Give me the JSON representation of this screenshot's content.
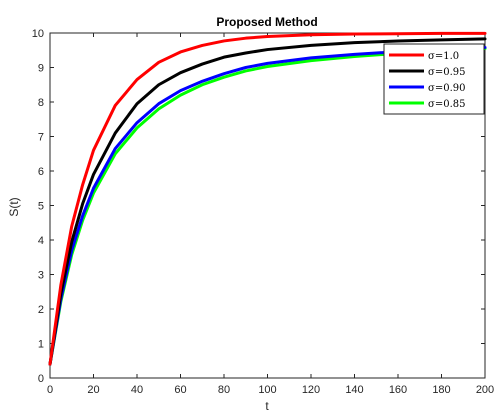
{
  "chart_data": {
    "type": "line",
    "title": "Proposed Method",
    "xlabel": "t",
    "ylabel": "S(t)",
    "xlim": [
      0,
      200
    ],
    "ylim": [
      0,
      10
    ],
    "xticks": [
      0,
      20,
      40,
      60,
      80,
      100,
      120,
      140,
      160,
      180,
      200
    ],
    "yticks": [
      0,
      1,
      2,
      3,
      4,
      5,
      6,
      7,
      8,
      9,
      10
    ],
    "grid": false,
    "legend_position": "top-right",
    "x": [
      0,
      5,
      10,
      15,
      20,
      30,
      40,
      50,
      60,
      70,
      80,
      90,
      100,
      120,
      140,
      160,
      180,
      200
    ],
    "series": [
      {
        "name": "σ=1.0",
        "color": "#ff0000",
        "values": [
          0.4,
          2.7,
          4.4,
          5.6,
          6.6,
          7.9,
          8.65,
          9.15,
          9.45,
          9.64,
          9.77,
          9.85,
          9.9,
          9.95,
          9.97,
          9.98,
          9.99,
          9.99
        ]
      },
      {
        "name": "σ=0.95",
        "color": "#000000",
        "values": [
          0.4,
          2.45,
          3.95,
          5.05,
          5.9,
          7.1,
          7.95,
          8.5,
          8.85,
          9.1,
          9.3,
          9.42,
          9.52,
          9.64,
          9.72,
          9.77,
          9.8,
          9.83
        ]
      },
      {
        "name": "σ=0.90",
        "color": "#0000ff",
        "values": [
          0.4,
          2.3,
          3.7,
          4.7,
          5.5,
          6.65,
          7.4,
          7.95,
          8.33,
          8.6,
          8.82,
          9.0,
          9.12,
          9.28,
          9.38,
          9.46,
          9.52,
          9.58
        ]
      },
      {
        "name": "σ=0.85",
        "color": "#00ff00",
        "values": [
          0.4,
          2.22,
          3.58,
          4.57,
          5.36,
          6.5,
          7.25,
          7.8,
          8.2,
          8.5,
          8.72,
          8.9,
          9.03,
          9.2,
          9.32,
          9.41,
          9.48,
          9.55
        ]
      }
    ]
  }
}
